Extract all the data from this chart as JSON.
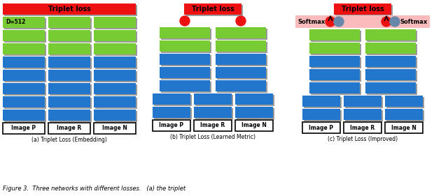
{
  "red_color": "#ee1111",
  "green_color": "#77cc33",
  "blue_color": "#2277cc",
  "white_color": "#ffffff",
  "black_color": "#000000",
  "pink_color": "#f9bbbb",
  "gray_circle_color": "#6688aa",
  "shadow_color": "#999999",
  "triplet_text": "Triplet loss",
  "softmax_text": "Softmax",
  "d512_text": "D=512",
  "image_p": "Image P",
  "image_r": "Image R",
  "image_n": "Image N",
  "caption_a": "(a) Triplet Loss (Embedding)",
  "caption_b": "(b) Triplet Loss (Learned Metric)",
  "caption_c": "(c) Triplet Loss (Improved)",
  "figure_caption": "Figure 3.  Three networks with different losses.   (a) the triplet"
}
